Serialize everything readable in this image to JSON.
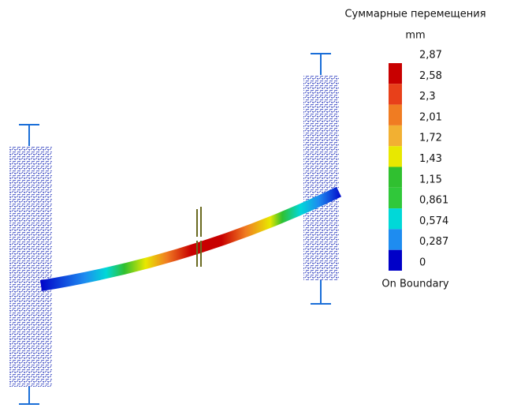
{
  "legend": {
    "title": "Суммарные перемещения",
    "unit": "mm",
    "labels": [
      "2,87",
      "2,58",
      "2,3",
      "2,01",
      "1,72",
      "1,43",
      "1,15",
      "0,861",
      "0,574",
      "0,287",
      "0"
    ],
    "colors": [
      "#c80000",
      "#e8401a",
      "#f07c22",
      "#f2b032",
      "#e8e800",
      "#30c030",
      "#30c83a",
      "#00d8d8",
      "#1e8cf0",
      "#0000c8"
    ],
    "note": "On Boundary"
  }
}
